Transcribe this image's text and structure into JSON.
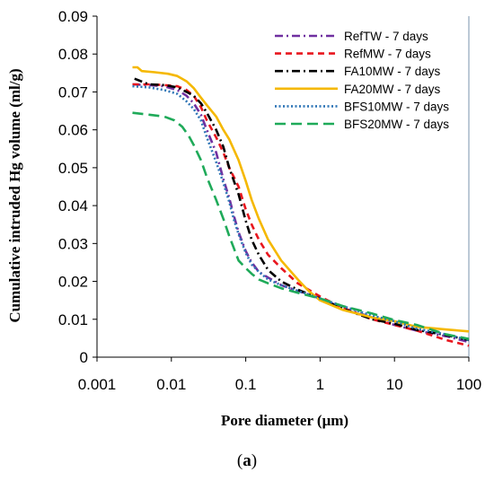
{
  "chart_data": {
    "type": "line",
    "xscale": "log",
    "xlim": [
      0.001,
      100
    ],
    "ylim": [
      0,
      0.09
    ],
    "xticks": [
      0.001,
      0.01,
      0.1,
      1,
      10,
      100
    ],
    "xtick_labels": [
      "0.001",
      "0.01",
      "0.1",
      "1",
      "10",
      "100"
    ],
    "yticks": [
      0,
      0.01,
      0.02,
      0.03,
      0.04,
      0.05,
      0.06,
      0.07,
      0.08,
      0.09
    ],
    "ytick_labels": [
      "0",
      "0.01",
      "0.02",
      "0.03",
      "0.04",
      "0.05",
      "0.06",
      "0.07",
      "0.08",
      "0.09"
    ],
    "xlabel": "Pore diameter (μm)",
    "ylabel": "Cumulative intruded Hg volume (ml/g)",
    "grid": false,
    "legend_position": "top-right",
    "series": [
      {
        "name": "RefTW - 7 days",
        "color": "#7030A0",
        "dash": "dashdot",
        "x": [
          0.003,
          0.005,
          0.008,
          0.012,
          0.016,
          0.02,
          0.025,
          0.03,
          0.04,
          0.05,
          0.06,
          0.07,
          0.08,
          0.1,
          0.12,
          0.15,
          0.2,
          0.3,
          0.5,
          1,
          2,
          5,
          10,
          20,
          50,
          100
        ],
        "y": [
          0.072,
          0.0718,
          0.0715,
          0.0705,
          0.069,
          0.067,
          0.064,
          0.06,
          0.054,
          0.047,
          0.042,
          0.037,
          0.033,
          0.028,
          0.025,
          0.0225,
          0.021,
          0.019,
          0.0175,
          0.0155,
          0.013,
          0.0105,
          0.0085,
          0.007,
          0.0055,
          0.004
        ]
      },
      {
        "name": "RefMW - 7 days",
        "color": "#E8161E",
        "dash": "dash",
        "x": [
          0.003,
          0.005,
          0.008,
          0.012,
          0.016,
          0.02,
          0.025,
          0.03,
          0.04,
          0.05,
          0.06,
          0.08,
          0.1,
          0.12,
          0.15,
          0.2,
          0.3,
          0.5,
          1,
          2,
          5,
          10,
          20,
          50,
          100
        ],
        "y": [
          0.072,
          0.072,
          0.0718,
          0.0715,
          0.0705,
          0.069,
          0.066,
          0.0625,
          0.058,
          0.054,
          0.05,
          0.045,
          0.039,
          0.035,
          0.031,
          0.027,
          0.0235,
          0.0195,
          0.016,
          0.013,
          0.01,
          0.0085,
          0.007,
          0.0045,
          0.003
        ]
      },
      {
        "name": "FA10MW - 7 days",
        "color": "#000000",
        "dash": "dashdot",
        "x": [
          0.0032,
          0.005,
          0.008,
          0.012,
          0.016,
          0.02,
          0.025,
          0.03,
          0.04,
          0.05,
          0.06,
          0.08,
          0.1,
          0.12,
          0.15,
          0.2,
          0.3,
          0.5,
          1,
          2,
          5,
          10,
          20,
          50,
          100
        ],
        "y": [
          0.0735,
          0.072,
          0.0718,
          0.0712,
          0.07,
          0.069,
          0.067,
          0.0645,
          0.06,
          0.0555,
          0.05,
          0.043,
          0.036,
          0.031,
          0.027,
          0.023,
          0.02,
          0.0178,
          0.0155,
          0.0128,
          0.01,
          0.0088,
          0.0072,
          0.0058,
          0.0045
        ]
      },
      {
        "name": "FA20MW - 7 days",
        "color": "#F5B800",
        "dash": "solid",
        "x": [
          0.003,
          0.0035,
          0.004,
          0.006,
          0.009,
          0.012,
          0.016,
          0.02,
          0.025,
          0.03,
          0.04,
          0.05,
          0.06,
          0.08,
          0.1,
          0.12,
          0.15,
          0.2,
          0.3,
          0.5,
          0.7,
          1,
          2,
          5,
          10,
          20,
          50,
          100
        ],
        "y": [
          0.0765,
          0.0765,
          0.0755,
          0.0752,
          0.0748,
          0.0742,
          0.0728,
          0.071,
          0.0685,
          0.0665,
          0.0635,
          0.06,
          0.0575,
          0.052,
          0.0465,
          0.0415,
          0.0365,
          0.031,
          0.0255,
          0.0205,
          0.0175,
          0.015,
          0.0125,
          0.0105,
          0.0095,
          0.008,
          0.0073,
          0.0068
        ]
      },
      {
        "name": "BFS10MW - 7 days",
        "color": "#2E75B6",
        "dash": "dot",
        "x": [
          0.003,
          0.005,
          0.008,
          0.012,
          0.016,
          0.02,
          0.025,
          0.03,
          0.04,
          0.05,
          0.06,
          0.07,
          0.08,
          0.1,
          0.12,
          0.15,
          0.2,
          0.3,
          0.5,
          1,
          2,
          5,
          10,
          20,
          50,
          100
        ],
        "y": [
          0.0715,
          0.0712,
          0.0705,
          0.0695,
          0.0675,
          0.0655,
          0.0625,
          0.058,
          0.0515,
          0.046,
          0.041,
          0.036,
          0.0325,
          0.0275,
          0.0245,
          0.0225,
          0.0205,
          0.019,
          0.0175,
          0.0155,
          0.0135,
          0.011,
          0.0095,
          0.0075,
          0.006,
          0.0045
        ]
      },
      {
        "name": "BFS20MW - 7 days",
        "color": "#1FAA59",
        "dash": "longdash",
        "x": [
          0.003,
          0.005,
          0.008,
          0.011,
          0.014,
          0.017,
          0.02,
          0.025,
          0.03,
          0.04,
          0.05,
          0.06,
          0.07,
          0.08,
          0.1,
          0.12,
          0.15,
          0.2,
          0.3,
          0.5,
          1,
          2,
          5,
          10,
          20,
          50,
          100
        ],
        "y": [
          0.0645,
          0.064,
          0.0635,
          0.0625,
          0.0608,
          0.0585,
          0.056,
          0.052,
          0.0475,
          0.0415,
          0.0365,
          0.032,
          0.0285,
          0.0255,
          0.0235,
          0.022,
          0.0205,
          0.0195,
          0.0182,
          0.017,
          0.0155,
          0.0135,
          0.0115,
          0.0098,
          0.0085,
          0.006,
          0.0048
        ]
      }
    ]
  },
  "figure": {
    "caption_open": "(",
    "caption_letter": "a",
    "caption_close": ")"
  }
}
